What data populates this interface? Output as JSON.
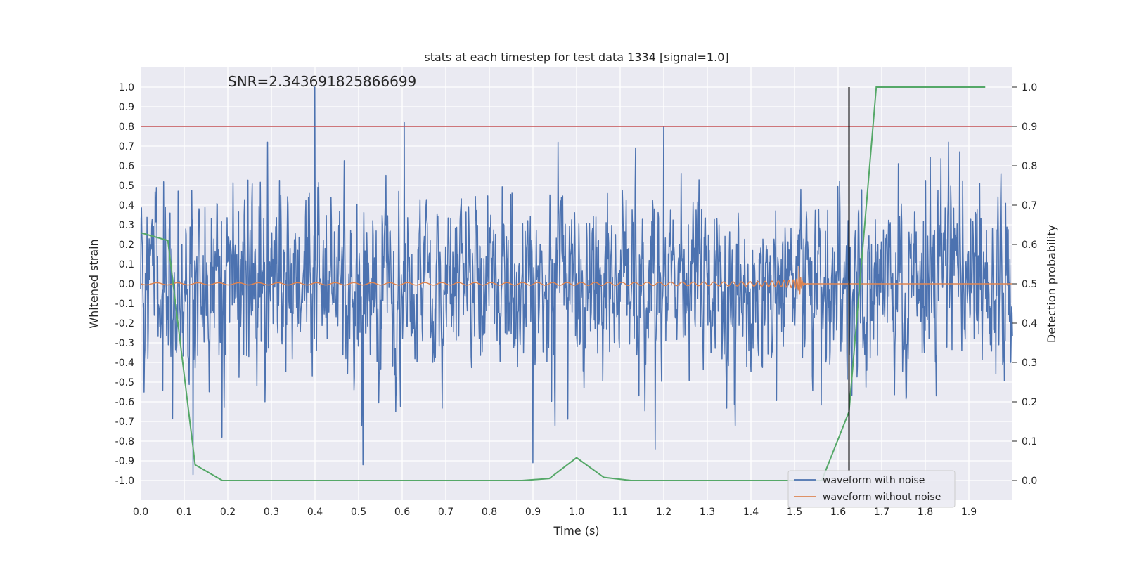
{
  "chart_data": {
    "type": "line",
    "title": "stats at each timestep for test data 1334 [signal=1.0]",
    "annotation": "SNR=2.343691825866699",
    "xlabel": "Time (s)",
    "ylabel": "Whitened strain",
    "y2label": "Detection probability",
    "xlim": [
      0.0,
      2.0
    ],
    "ylim": [
      -1.1,
      1.1
    ],
    "y2lim": [
      -0.05,
      1.05
    ],
    "xticks": [
      "0.0",
      "0.1",
      "0.2",
      "0.3",
      "0.4",
      "0.5",
      "0.6",
      "0.7",
      "0.8",
      "0.9",
      "1.0",
      "1.1",
      "1.2",
      "1.3",
      "1.4",
      "1.5",
      "1.6",
      "1.7",
      "1.8",
      "1.9"
    ],
    "yticks": [
      "-1.0",
      "-0.9",
      "-0.8",
      "-0.7",
      "-0.6",
      "-0.5",
      "-0.4",
      "-0.3",
      "-0.2",
      "-0.1",
      "0.0",
      "0.1",
      "0.2",
      "0.3",
      "0.4",
      "0.5",
      "0.6",
      "0.7",
      "0.8",
      "0.9",
      "1.0"
    ],
    "y2ticks": [
      "0.0",
      "0.1",
      "0.2",
      "0.3",
      "0.4",
      "0.5",
      "0.6",
      "0.7",
      "0.8",
      "0.9",
      "1.0"
    ],
    "grid": true,
    "legend_placement": "lower-right",
    "threshold": {
      "axis": "y2",
      "value": 0.9,
      "color": "#c44e52"
    },
    "event_marker": {
      "x": 1.625,
      "y_from": -0.95,
      "y_to": 1.0,
      "color": "#000000"
    },
    "colors": {
      "noisy": "#4c72b0",
      "clean": "#dd8452",
      "probability": "#55a868",
      "background": "#eaeaf2",
      "grid": "#ffffff"
    },
    "legend": [
      {
        "label": "waveform with noise",
        "color": "#4c72b0"
      },
      {
        "label": "waveform without noise",
        "color": "#dd8452"
      }
    ],
    "series": [
      {
        "name": "waveform with noise",
        "axis": "y1",
        "kind": "noise",
        "seed": 1334,
        "sample_count": 2048,
        "sigma": 0.3,
        "spikes": [
          [
            0.4,
            1.0
          ],
          [
            0.605,
            0.82
          ],
          [
            1.2,
            0.8
          ],
          [
            0.12,
            -0.97
          ],
          [
            0.51,
            -0.92
          ],
          [
            0.9,
            -0.91
          ],
          [
            1.18,
            -0.84
          ],
          [
            0.187,
            -0.78
          ]
        ]
      },
      {
        "name": "waveform without noise",
        "axis": "y1",
        "kind": "chirp",
        "t_merger": 1.51,
        "x_end": 2.0
      },
      {
        "name": "detection probability",
        "axis": "y2",
        "x": [
          0.0,
          0.0625,
          0.125,
          0.1875,
          0.25,
          0.3125,
          0.375,
          0.4375,
          0.5,
          0.5625,
          0.625,
          0.6875,
          0.75,
          0.8125,
          0.875,
          0.9375,
          1.0,
          1.0625,
          1.125,
          1.1875,
          1.25,
          1.3125,
          1.375,
          1.4375,
          1.5,
          1.5625,
          1.625,
          1.6875,
          1.75,
          1.8125,
          1.875,
          1.9375
        ],
        "y": [
          0.63,
          0.61,
          0.04,
          0.0,
          0.0,
          0.0,
          0.0,
          0.0,
          0.0,
          0.0,
          0.0,
          0.0,
          0.0,
          0.0,
          0.0,
          0.005,
          0.058,
          0.008,
          0.0,
          0.0,
          0.0,
          0.0,
          0.0,
          0.0,
          0.0,
          0.0,
          0.175,
          1.0,
          1.0,
          1.0,
          1.0,
          1.0
        ]
      }
    ]
  }
}
